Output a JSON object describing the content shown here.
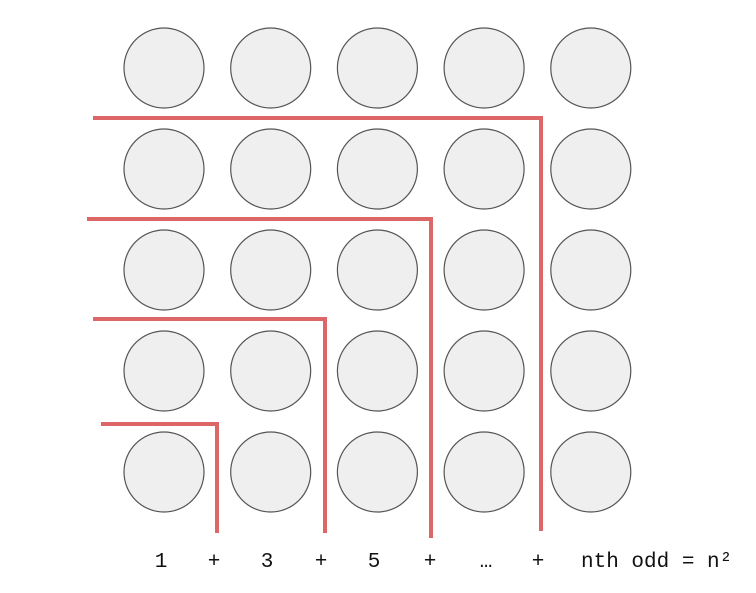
{
  "grid": {
    "rows": 5,
    "columns": 5,
    "dot_fill": "#efefef",
    "dot_stroke": "#555555"
  },
  "bracket_color": "#dd6666",
  "caption": {
    "terms": [
      "1",
      "3",
      "5",
      "…"
    ],
    "plus": "+",
    "final": "nth odd = n²"
  }
}
